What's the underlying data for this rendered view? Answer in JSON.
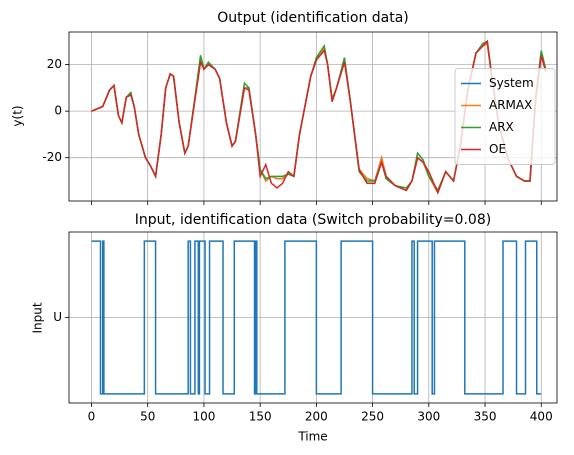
{
  "chart_data": [
    {
      "type": "line",
      "title": "Output (identification data)",
      "y_label": "y(t)",
      "xlim": [
        -20,
        414
      ],
      "ylim": [
        -38.6,
        34
      ],
      "xticks": [
        0,
        50,
        100,
        150,
        200,
        250,
        300,
        350,
        400
      ],
      "yticks": [
        -20,
        0,
        20
      ],
      "grid": true,
      "legend": "right",
      "x": [
        0,
        10,
        16,
        20,
        24,
        27,
        31,
        35,
        38,
        42,
        48,
        53,
        57,
        62,
        66,
        70,
        73,
        78,
        83,
        86,
        92,
        97,
        100,
        104,
        110,
        114,
        120,
        125,
        128,
        136,
        140,
        146,
        150,
        155,
        160,
        165,
        170,
        175,
        180,
        185,
        195,
        200,
        207,
        210,
        214,
        218,
        225,
        230,
        238,
        245,
        252,
        258,
        262,
        270,
        280,
        285,
        290,
        295,
        300,
        308,
        315,
        322,
        328,
        335,
        342,
        348,
        352,
        356,
        362,
        370,
        378,
        385,
        390,
        395,
        400,
        404
      ],
      "series": [
        {
          "name": "System",
          "color": "#1f77b4",
          "values": [
            0,
            2,
            9,
            11,
            -2,
            -5,
            6,
            7,
            2,
            -10,
            -20,
            -24,
            -28,
            -10,
            10,
            16,
            15,
            -5,
            -18,
            -15,
            5,
            22,
            18,
            20,
            18,
            14,
            -5,
            -15,
            -13,
            10,
            10,
            -10,
            -25,
            -30,
            -28,
            -29,
            -29,
            -27,
            -28,
            -10,
            15,
            22,
            27,
            20,
            5,
            10,
            22,
            5,
            -25,
            -29,
            -30,
            -20,
            -28,
            -32,
            -34,
            -30,
            -20,
            -22,
            -28,
            -35,
            -26,
            -30,
            -15,
            10,
            25,
            28,
            29,
            15,
            -5,
            -20,
            -28,
            -30,
            -30,
            5,
            24,
            17
          ]
        },
        {
          "name": "ARMAX",
          "color": "#ff7f0e",
          "values": [
            0,
            2,
            9,
            11,
            -2,
            -5,
            6,
            7,
            2,
            -10,
            -20,
            -24,
            -28,
            -10,
            10,
            16,
            15,
            -5,
            -18,
            -15,
            5,
            22,
            18,
            20,
            18,
            14,
            -5,
            -15,
            -13,
            10,
            10,
            -10,
            -25,
            -30,
            -28,
            -29,
            -29,
            -27,
            -28,
            -10,
            15,
            22,
            27,
            20,
            5,
            10,
            22,
            5,
            -25,
            -29,
            -30,
            -20,
            -28,
            -32,
            -34,
            -30,
            -20,
            -22,
            -28,
            -35,
            -26,
            -30,
            -15,
            10,
            25,
            28,
            29,
            15,
            -5,
            -20,
            -28,
            -30,
            -30,
            5,
            24,
            17
          ]
        },
        {
          "name": "ARX",
          "color": "#2ca02c",
          "values": [
            0,
            2,
            9,
            11,
            -2,
            -5,
            6,
            8,
            2,
            -10,
            -20,
            -24,
            -28,
            -10,
            10,
            16,
            15,
            -5,
            -18,
            -15,
            6,
            24,
            18,
            21,
            18,
            14,
            -5,
            -15,
            -13,
            12,
            10,
            -10,
            -25,
            -29,
            -28,
            -28,
            -28,
            -27,
            -28,
            -10,
            15,
            23,
            28,
            20,
            5,
            10,
            23,
            5,
            -26,
            -30,
            -30,
            -22,
            -29,
            -32,
            -33,
            -30,
            -18,
            -21,
            -28,
            -34,
            -26,
            -30,
            -15,
            10,
            25,
            29,
            30,
            15,
            -5,
            -20,
            -28,
            -30,
            -30,
            6,
            26,
            18
          ]
        },
        {
          "name": "OE",
          "color": "#d62728",
          "values": [
            0,
            2,
            9,
            11,
            -2,
            -5,
            6,
            7,
            2,
            -10,
            -20,
            -24,
            -28,
            -10,
            10,
            16,
            15,
            -5,
            -18,
            -15,
            5,
            21,
            18,
            20,
            18,
            14,
            -5,
            -15,
            -13,
            10,
            9,
            -10,
            -28,
            -23,
            -31,
            -33,
            -31,
            -26,
            -28,
            -10,
            15,
            22,
            26,
            20,
            4,
            10,
            21,
            5,
            -25,
            -31,
            -31,
            -22,
            -28,
            -32,
            -34,
            -30,
            -20,
            -22,
            -26,
            -35,
            -26,
            -30,
            -15,
            10,
            25,
            28,
            30,
            15,
            -5,
            -20,
            -28,
            -30,
            -30,
            5,
            24,
            17
          ]
        }
      ]
    },
    {
      "type": "step",
      "title": "Input, identification data (Switch probability=0.08)",
      "x_label": "Time",
      "y_label": "Input",
      "xlim": [
        -20,
        414
      ],
      "ylim": [
        -1.12,
        1.12
      ],
      "xticks": [
        0,
        50,
        100,
        150,
        200,
        250,
        300,
        350,
        400
      ],
      "yticks": [
        {
          "value": 0,
          "label": "U"
        }
      ],
      "grid": true,
      "x": [
        0,
        8,
        8,
        10,
        10,
        11,
        11,
        47,
        47,
        57,
        57,
        86,
        86,
        88,
        88,
        92,
        92,
        95,
        95,
        96,
        96,
        101,
        101,
        105,
        105,
        117,
        117,
        127,
        127,
        145,
        145,
        146,
        146,
        147,
        147,
        172,
        172,
        200,
        200,
        222,
        222,
        250,
        250,
        285,
        285,
        287,
        287,
        290,
        290,
        303,
        303,
        305,
        305,
        332,
        332,
        366,
        366,
        378,
        378,
        386,
        386,
        396,
        396,
        400
      ],
      "series": [
        {
          "name": "Input",
          "color": "#1f77b4",
          "values": [
            1,
            1,
            -1,
            -1,
            1,
            1,
            -1,
            -1,
            1,
            1,
            -1,
            -1,
            1,
            1,
            -1,
            -1,
            1,
            1,
            -1,
            -1,
            1,
            1,
            -1,
            -1,
            1,
            1,
            -1,
            -1,
            1,
            1,
            -1,
            -1,
            1,
            1,
            -1,
            -1,
            1,
            1,
            -1,
            -1,
            1,
            1,
            -1,
            -1,
            1,
            1,
            -1,
            -1,
            1,
            1,
            -1,
            -1,
            1,
            1,
            -1,
            -1,
            1,
            1,
            -1,
            -1,
            1,
            1,
            -1,
            -1
          ]
        }
      ]
    }
  ]
}
